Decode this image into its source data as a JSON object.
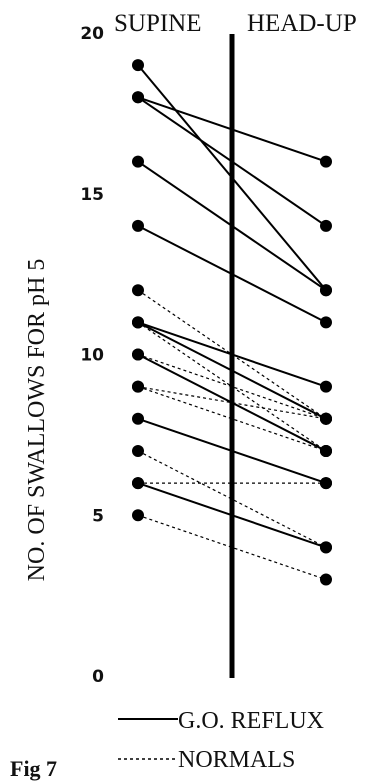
{
  "chart_data": {
    "type": "line",
    "left_label": "SUPINE",
    "right_label": "HEAD-UP",
    "ylabel": "NO. OF SWALLOWS FOR pH 5",
    "ylim": [
      0,
      20
    ],
    "yticks": [
      "0",
      "5",
      "10",
      "15",
      "20"
    ],
    "legend": {
      "reflux": "G.O. REFLUX",
      "normals": "NORMALS"
    },
    "caption": "Fig 7",
    "series": [
      {
        "group": "reflux",
        "values": [
          19,
          12
        ]
      },
      {
        "group": "reflux",
        "values": [
          18,
          16
        ]
      },
      {
        "group": "reflux",
        "values": [
          18,
          14
        ]
      },
      {
        "group": "reflux",
        "values": [
          16,
          12
        ]
      },
      {
        "group": "reflux",
        "values": [
          14,
          11
        ]
      },
      {
        "group": "reflux",
        "values": [
          11,
          9
        ]
      },
      {
        "group": "reflux",
        "values": [
          11,
          8
        ]
      },
      {
        "group": "reflux",
        "values": [
          10,
          7
        ]
      },
      {
        "group": "reflux",
        "values": [
          8,
          6
        ]
      },
      {
        "group": "reflux",
        "values": [
          6,
          4
        ]
      },
      {
        "group": "normals",
        "values": [
          12,
          8
        ]
      },
      {
        "group": "normals",
        "values": [
          11,
          7
        ]
      },
      {
        "group": "normals",
        "values": [
          10,
          8
        ]
      },
      {
        "group": "normals",
        "values": [
          9,
          7
        ]
      },
      {
        "group": "normals",
        "values": [
          9,
          8
        ]
      },
      {
        "group": "normals",
        "values": [
          7,
          4
        ]
      },
      {
        "group": "normals",
        "values": [
          6,
          6
        ]
      },
      {
        "group": "normals",
        "values": [
          5,
          3
        ]
      }
    ]
  }
}
